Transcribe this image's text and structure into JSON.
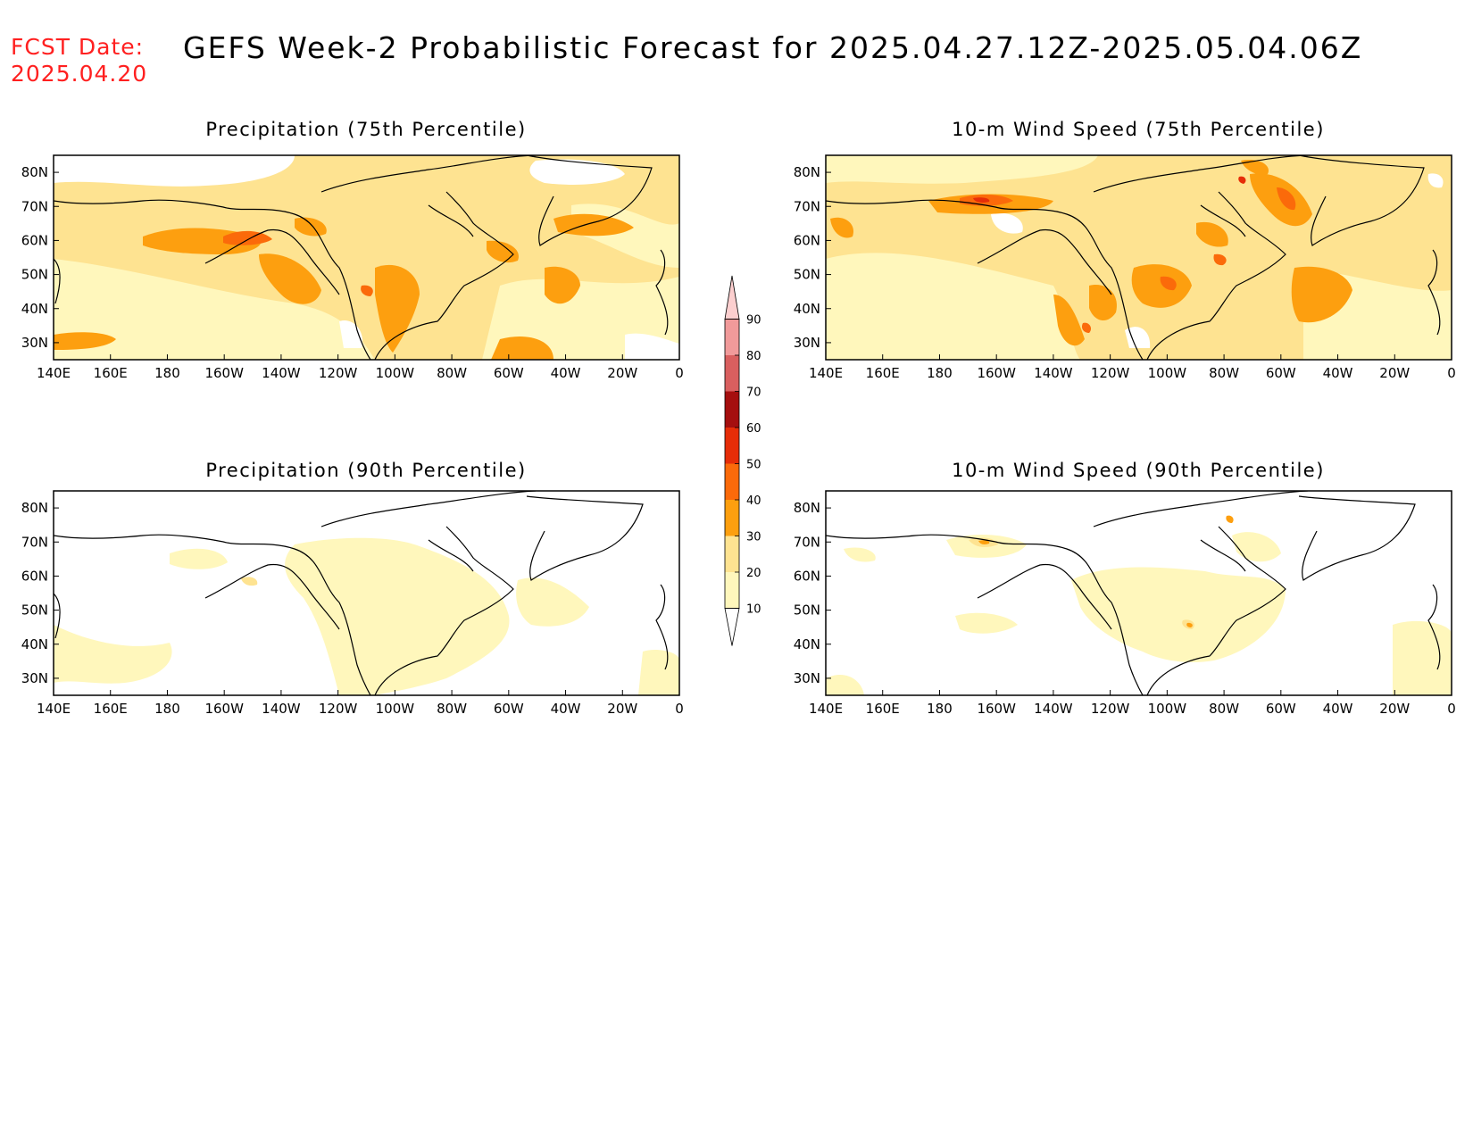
{
  "header": {
    "fcst_label": "FCST Date:",
    "fcst_date": "2025.04.20",
    "title": "GEFS Week-2 Probabilistic Forecast for 2025.04.27.12Z-2025.05.04.06Z"
  },
  "panels": [
    {
      "id": "precip-75",
      "title": "Precipitation (75th Percentile)"
    },
    {
      "id": "wind-75",
      "title": "10-m Wind Speed (75th Percentile)"
    },
    {
      "id": "precip-90",
      "title": "Precipitation (90th Percentile)"
    },
    {
      "id": "wind-90",
      "title": "10-m Wind Speed (90th Percentile)"
    }
  ],
  "axes": {
    "lon_labels": [
      "140E",
      "160E",
      "180",
      "160W",
      "140W",
      "120W",
      "100W",
      "80W",
      "60W",
      "40W",
      "20W",
      "0"
    ],
    "lat_labels": [
      "80N",
      "70N",
      "60N",
      "50N",
      "40N",
      "30N"
    ],
    "lat_values": [
      80,
      70,
      60,
      50,
      40,
      30
    ]
  },
  "colorbar": {
    "levels": [
      10,
      20,
      30,
      40,
      50,
      60,
      70,
      80,
      90
    ],
    "colors": [
      "#fff7bc",
      "#fee391",
      "#fd9f0f",
      "#fb6a0a",
      "#e62d08",
      "#a50f0f",
      "#d95f5f",
      "#f19a9a",
      "#fccfcf"
    ],
    "tick_labels": [
      "10",
      "20",
      "30",
      "40",
      "50",
      "60",
      "70",
      "80",
      "90"
    ]
  }
}
